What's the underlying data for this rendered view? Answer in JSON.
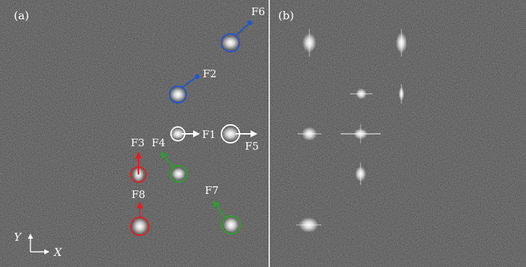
{
  "panels": [
    {
      "id": "a",
      "label": "(a)"
    },
    {
      "id": "b",
      "label": "(b)"
    }
  ],
  "axes": {
    "y_label": "Y",
    "x_label": "X"
  },
  "features": [
    {
      "id": "F1",
      "label": "F1",
      "color": "#ffffff"
    },
    {
      "id": "F2",
      "label": "F2",
      "color": "#2255cc"
    },
    {
      "id": "F3",
      "label": "F3",
      "color": "#e02020"
    },
    {
      "id": "F4",
      "label": "F4",
      "color": "#2aa02a"
    },
    {
      "id": "F5",
      "label": "F5",
      "color": "#ffffff"
    },
    {
      "id": "F6",
      "label": "F6",
      "color": "#2255cc"
    },
    {
      "id": "F7",
      "label": "F7",
      "color": "#2aa02a"
    },
    {
      "id": "F8",
      "label": "F8",
      "color": "#e02020"
    }
  ],
  "colors": {
    "background": "#262626",
    "divider": "#d8d8d8",
    "white": "#ffffff",
    "blue": "#2255cc",
    "red": "#e02020",
    "green": "#2aa02a"
  }
}
